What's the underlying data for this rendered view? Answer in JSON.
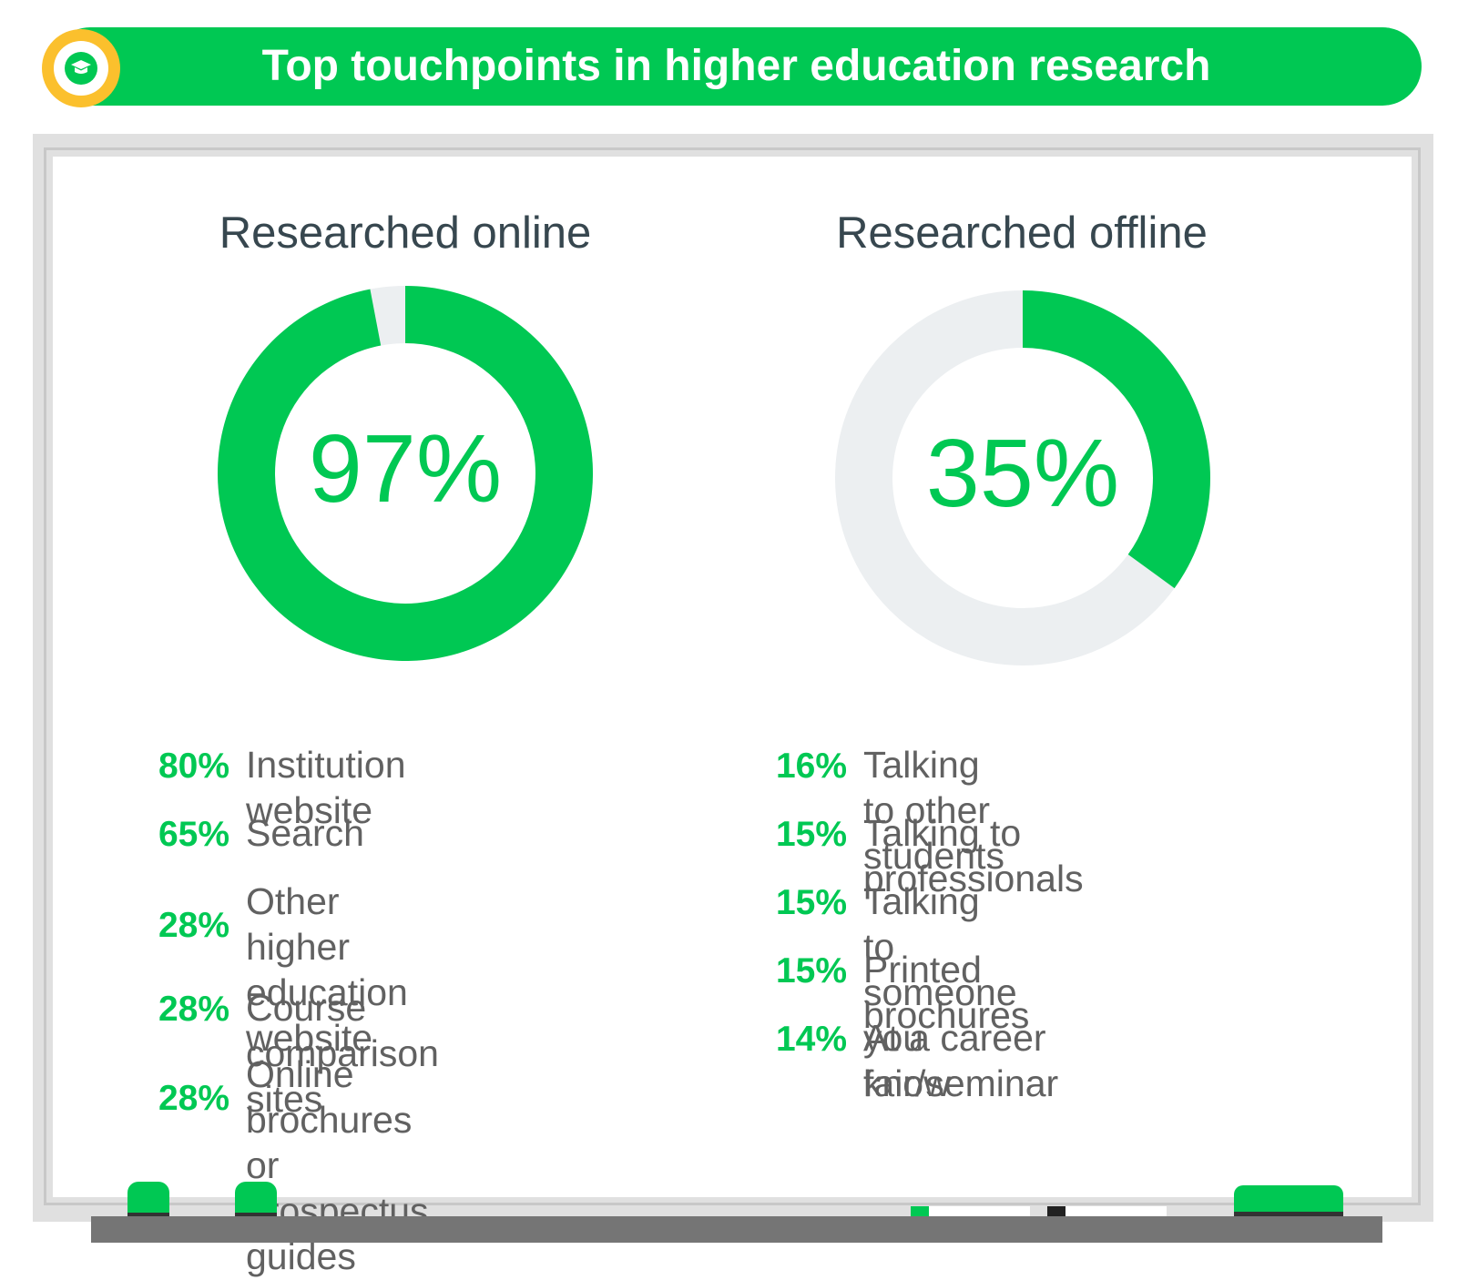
{
  "header": {
    "title": "Top touchpoints in higher education research",
    "badge_icon": "graduation-cap-icon"
  },
  "colors": {
    "accent": "#00c853",
    "track": "#eceff1",
    "badge_ring": "#fbc02d",
    "title_text": "#37474f",
    "label_text": "#616161"
  },
  "chart_data": [
    {
      "type": "pie",
      "title": "Researched online",
      "value_label": "97%",
      "values": [
        97,
        3
      ],
      "categories": [
        "Researched online",
        ""
      ]
    },
    {
      "type": "pie",
      "title": "Researched offline",
      "value_label": "35%",
      "values": [
        35,
        65
      ],
      "categories": [
        "Researched offline",
        ""
      ]
    }
  ],
  "online": {
    "items": [
      {
        "pct": "80%",
        "label": "Institution website"
      },
      {
        "pct": "65%",
        "label": "Search"
      },
      {
        "pct": "28%",
        "label": "Other higher\neducation website"
      },
      {
        "pct": "28%",
        "label": "Course comparison sites"
      },
      {
        "pct": "28%",
        "label": "Online brochures\nor prospectus guides"
      }
    ]
  },
  "offline": {
    "items": [
      {
        "pct": "16%",
        "label": "Talking to other students"
      },
      {
        "pct": "15%",
        "label": "Talking to professionals"
      },
      {
        "pct": "15%",
        "label": "Talking to someone you know"
      },
      {
        "pct": "15%",
        "label": "Printed brochures"
      },
      {
        "pct": "14%",
        "label": "At a career fair/seminar"
      }
    ]
  }
}
